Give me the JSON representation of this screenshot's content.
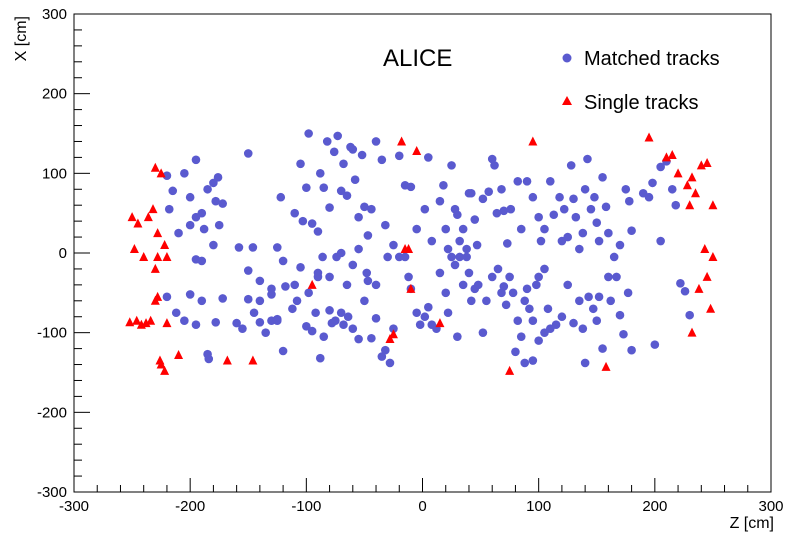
{
  "chart_data": {
    "type": "scatter",
    "title": "ALICE",
    "xlabel": "Z [cm]",
    "ylabel": "X [cm]",
    "xlim": [
      -300,
      300
    ],
    "ylim": [
      -300,
      300
    ],
    "xticks": [
      -300,
      -200,
      -100,
      0,
      100,
      200,
      300
    ],
    "yticks": [
      -300,
      -200,
      -100,
      0,
      100,
      200,
      300
    ],
    "grid": false,
    "legend_position": "top-right",
    "series": [
      {
        "name": "Matched tracks",
        "marker": "circle",
        "color": "#5a5acf",
        "points": [
          [
            -220,
            97
          ],
          [
            -215,
            78
          ],
          [
            -218,
            55
          ],
          [
            -205,
            100
          ],
          [
            -200,
            70
          ],
          [
            -195,
            117
          ],
          [
            -190,
            50
          ],
          [
            -185,
            80
          ],
          [
            -180,
            88
          ],
          [
            -178,
            65
          ],
          [
            -176,
            95
          ],
          [
            -172,
            62
          ],
          [
            -150,
            125
          ],
          [
            -210,
            25
          ],
          [
            -200,
            35
          ],
          [
            -195,
            45
          ],
          [
            -188,
            30
          ],
          [
            -195,
            -8
          ],
          [
            -190,
            -10
          ],
          [
            -180,
            10
          ],
          [
            -175,
            35
          ],
          [
            -158,
            7
          ],
          [
            -146,
            7
          ],
          [
            -220,
            -55
          ],
          [
            -212,
            -75
          ],
          [
            -205,
            -85
          ],
          [
            -200,
            -52
          ],
          [
            -195,
            -90
          ],
          [
            -190,
            -60
          ],
          [
            -185,
            -127
          ],
          [
            -184,
            -133
          ],
          [
            -178,
            -87
          ],
          [
            -172,
            -57
          ],
          [
            -160,
            -88
          ],
          [
            -155,
            -95
          ],
          [
            -145,
            -75
          ],
          [
            -140,
            -60
          ],
          [
            -135,
            -100
          ],
          [
            -130,
            -85
          ],
          [
            -125,
            -83
          ],
          [
            -122,
            70
          ],
          [
            -110,
            50
          ],
          [
            -105,
            112
          ],
          [
            -103,
            40
          ],
          [
            -100,
            82
          ],
          [
            -98,
            150
          ],
          [
            -95,
            37
          ],
          [
            -90,
            27
          ],
          [
            -88,
            100
          ],
          [
            -85,
            82
          ],
          [
            -82,
            140
          ],
          [
            -80,
            57
          ],
          [
            -76,
            127
          ],
          [
            -73,
            147
          ],
          [
            -70,
            78
          ],
          [
            -68,
            112
          ],
          [
            -65,
            72
          ],
          [
            -62,
            133
          ],
          [
            -60,
            130
          ],
          [
            -58,
            92
          ],
          [
            -55,
            45
          ],
          [
            -52,
            123
          ],
          [
            -50,
            58
          ],
          [
            -47,
            22
          ],
          [
            -44,
            55
          ],
          [
            -40,
            140
          ],
          [
            -35,
            117
          ],
          [
            -32,
            35
          ],
          [
            -150,
            -58
          ],
          [
            -140,
            -87
          ],
          [
            -130,
            -52
          ],
          [
            -125,
            -85
          ],
          [
            -120,
            -123
          ],
          [
            -118,
            -42
          ],
          [
            -112,
            -70
          ],
          [
            -108,
            -60
          ],
          [
            -100,
            -92
          ],
          [
            -95,
            -98
          ],
          [
            -92,
            -75
          ],
          [
            -90,
            -30
          ],
          [
            -88,
            -132
          ],
          [
            -85,
            -105
          ],
          [
            -80,
            -72
          ],
          [
            -78,
            -88
          ],
          [
            -75,
            -85
          ],
          [
            -70,
            -75
          ],
          [
            -68,
            -90
          ],
          [
            -64,
            -80
          ],
          [
            -60,
            -95
          ],
          [
            -55,
            -108
          ],
          [
            -50,
            -60
          ],
          [
            -47,
            -35
          ],
          [
            -44,
            -107
          ],
          [
            -40,
            -82
          ],
          [
            -35,
            -130
          ],
          [
            -32,
            -122
          ],
          [
            -28,
            -138
          ],
          [
            -25,
            -95
          ],
          [
            -150,
            -22
          ],
          [
            -140,
            -35
          ],
          [
            -130,
            -45
          ],
          [
            -125,
            7
          ],
          [
            -120,
            -10
          ],
          [
            -110,
            -40
          ],
          [
            -105,
            -18
          ],
          [
            -98,
            -50
          ],
          [
            -90,
            -25
          ],
          [
            -86,
            -5
          ],
          [
            -80,
            -30
          ],
          [
            -74,
            -5
          ],
          [
            -70,
            0
          ],
          [
            -65,
            -40
          ],
          [
            -60,
            -15
          ],
          [
            -55,
            5
          ],
          [
            -48,
            -25
          ],
          [
            -40,
            -40
          ],
          [
            -30,
            -5
          ],
          [
            -25,
            10
          ],
          [
            -20,
            122
          ],
          [
            -15,
            85
          ],
          [
            -10,
            83
          ],
          [
            -5,
            30
          ],
          [
            2,
            55
          ],
          [
            5,
            120
          ],
          [
            8,
            15
          ],
          [
            15,
            65
          ],
          [
            18,
            85
          ],
          [
            20,
            30
          ],
          [
            22,
            5
          ],
          [
            25,
            110
          ],
          [
            28,
            55
          ],
          [
            30,
            48
          ],
          [
            32,
            15
          ],
          [
            35,
            30
          ],
          [
            38,
            5
          ],
          [
            40,
            75
          ],
          [
            42,
            75
          ],
          [
            45,
            42
          ],
          [
            47,
            10
          ],
          [
            52,
            68
          ],
          [
            57,
            77
          ],
          [
            60,
            118
          ],
          [
            62,
            110
          ],
          [
            64,
            50
          ],
          [
            68,
            80
          ],
          [
            70,
            53
          ],
          [
            73,
            12
          ],
          [
            76,
            55
          ],
          [
            82,
            90
          ],
          [
            85,
            30
          ],
          [
            -20,
            -5
          ],
          [
            -15,
            -5
          ],
          [
            -12,
            -30
          ],
          [
            -10,
            -45
          ],
          [
            -5,
            -75
          ],
          [
            -2,
            -90
          ],
          [
            2,
            -80
          ],
          [
            5,
            -68
          ],
          [
            8,
            -90
          ],
          [
            12,
            -95
          ],
          [
            15,
            -25
          ],
          [
            20,
            -50
          ],
          [
            22,
            -75
          ],
          [
            25,
            -5
          ],
          [
            28,
            -15
          ],
          [
            30,
            -105
          ],
          [
            32,
            -5
          ],
          [
            35,
            -40
          ],
          [
            38,
            -5
          ],
          [
            40,
            -25
          ],
          [
            42,
            -60
          ],
          [
            45,
            -45
          ],
          [
            48,
            -40
          ],
          [
            52,
            -100
          ],
          [
            55,
            -60
          ],
          [
            60,
            -30
          ],
          [
            65,
            -20
          ],
          [
            68,
            -50
          ],
          [
            70,
            -42
          ],
          [
            72,
            -65
          ],
          [
            75,
            -30
          ],
          [
            78,
            -50
          ],
          [
            80,
            -124
          ],
          [
            82,
            -85
          ],
          [
            85,
            -105
          ],
          [
            88,
            -60
          ],
          [
            90,
            -45
          ],
          [
            92,
            -70
          ],
          [
            95,
            -85
          ],
          [
            98,
            -40
          ],
          [
            100,
            -30
          ],
          [
            105,
            -20
          ],
          [
            108,
            -70
          ],
          [
            90,
            90
          ],
          [
            95,
            70
          ],
          [
            100,
            45
          ],
          [
            102,
            15
          ],
          [
            105,
            30
          ],
          [
            110,
            90
          ],
          [
            113,
            48
          ],
          [
            118,
            70
          ],
          [
            120,
            15
          ],
          [
            122,
            55
          ],
          [
            125,
            20
          ],
          [
            128,
            110
          ],
          [
            130,
            68
          ],
          [
            132,
            45
          ],
          [
            135,
            5
          ],
          [
            138,
            25
          ],
          [
            140,
            80
          ],
          [
            142,
            118
          ],
          [
            145,
            55
          ],
          [
            148,
            70
          ],
          [
            150,
            38
          ],
          [
            152,
            15
          ],
          [
            155,
            95
          ],
          [
            158,
            58
          ],
          [
            160,
            25
          ],
          [
            165,
            -5
          ],
          [
            170,
            10
          ],
          [
            175,
            80
          ],
          [
            178,
            65
          ],
          [
            180,
            28
          ],
          [
            88,
            -138
          ],
          [
            95,
            -135
          ],
          [
            100,
            -110
          ],
          [
            105,
            -100
          ],
          [
            110,
            -95
          ],
          [
            115,
            -90
          ],
          [
            120,
            -80
          ],
          [
            125,
            -40
          ],
          [
            130,
            -88
          ],
          [
            135,
            -60
          ],
          [
            138,
            -95
          ],
          [
            140,
            -138
          ],
          [
            143,
            -55
          ],
          [
            147,
            -70
          ],
          [
            150,
            -85
          ],
          [
            152,
            -55
          ],
          [
            155,
            -120
          ],
          [
            160,
            -30
          ],
          [
            162,
            -60
          ],
          [
            167,
            -30
          ],
          [
            170,
            -78
          ],
          [
            173,
            -102
          ],
          [
            177,
            -50
          ],
          [
            180,
            -122
          ],
          [
            190,
            75
          ],
          [
            195,
            70
          ],
          [
            198,
            88
          ],
          [
            200,
            -115
          ],
          [
            205,
            108
          ],
          [
            205,
            15
          ],
          [
            210,
            115
          ],
          [
            215,
            80
          ],
          [
            218,
            60
          ],
          [
            222,
            -38
          ],
          [
            226,
            -48
          ],
          [
            230,
            -78
          ]
        ]
      },
      {
        "name": "Single tracks",
        "marker": "triangle",
        "color": "#ff0000",
        "points": [
          [
            -250,
            45
          ],
          [
            -248,
            5
          ],
          [
            -245,
            37
          ],
          [
            -240,
            -5
          ],
          [
            -236,
            45
          ],
          [
            -232,
            55
          ],
          [
            -230,
            107
          ],
          [
            -228,
            25
          ],
          [
            -225,
            100
          ],
          [
            -222,
            10
          ],
          [
            -220,
            -5
          ],
          [
            -230,
            -20
          ],
          [
            -228,
            -5
          ],
          [
            -252,
            -87
          ],
          [
            -246,
            -85
          ],
          [
            -242,
            -90
          ],
          [
            -238,
            -88
          ],
          [
            -234,
            -85
          ],
          [
            -230,
            -60
          ],
          [
            -228,
            -55
          ],
          [
            -226,
            -135
          ],
          [
            -225,
            -140
          ],
          [
            -222,
            -148
          ],
          [
            -220,
            -88
          ],
          [
            -210,
            -128
          ],
          [
            -168,
            -135
          ],
          [
            -146,
            -135
          ],
          [
            -95,
            -40
          ],
          [
            -28,
            -108
          ],
          [
            -25,
            -102
          ],
          [
            -18,
            140
          ],
          [
            -15,
            5
          ],
          [
            -12,
            5
          ],
          [
            -10,
            -45
          ],
          [
            -5,
            128
          ],
          [
            15,
            -88
          ],
          [
            75,
            -148
          ],
          [
            95,
            140
          ],
          [
            158,
            -143
          ],
          [
            195,
            145
          ],
          [
            210,
            120
          ],
          [
            215,
            123
          ],
          [
            220,
            100
          ],
          [
            228,
            85
          ],
          [
            230,
            60
          ],
          [
            232,
            95
          ],
          [
            235,
            75
          ],
          [
            240,
            110
          ],
          [
            245,
            113
          ],
          [
            238,
            -45
          ],
          [
            245,
            -30
          ],
          [
            232,
            -100
          ],
          [
            248,
            -70
          ],
          [
            250,
            -5
          ],
          [
            250,
            60
          ],
          [
            243,
            5
          ]
        ]
      }
    ]
  }
}
